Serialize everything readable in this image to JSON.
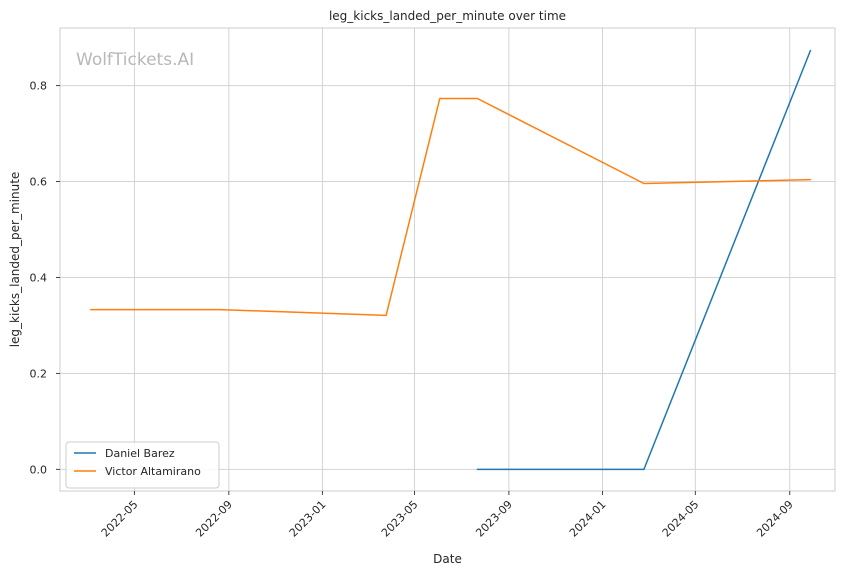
{
  "chart_data": {
    "type": "line",
    "title": "leg_kicks_landed_per_minute over time",
    "xlabel": "Date",
    "ylabel": "leg_kicks_landed_per_minute",
    "watermark": "WolfTickets.AI",
    "xlim": [
      "2022-01-24",
      "2024-10-30"
    ],
    "ylim": [
      -0.045,
      0.92
    ],
    "x_ticks": [
      "2022-05",
      "2022-09",
      "2023-01",
      "2023-05",
      "2023-09",
      "2024-01",
      "2024-05",
      "2024-09"
    ],
    "y_ticks": [
      0.0,
      0.2,
      0.4,
      0.6,
      0.8
    ],
    "grid": true,
    "legend_position": "lower-left",
    "series": [
      {
        "name": "Daniel Barez",
        "color": "#1f77b4",
        "x": [
          "2023-07-22",
          "2024-02-24",
          "2024-09-28"
        ],
        "y": [
          0.0,
          0.0,
          0.873
        ]
      },
      {
        "name": "Victor Altamirano",
        "color": "#ff7f0e",
        "x": [
          "2022-03-05",
          "2022-08-20",
          "2023-03-25",
          "2023-06-03",
          "2023-07-22",
          "2024-02-24",
          "2024-09-28"
        ],
        "y": [
          0.333,
          0.333,
          0.321,
          0.773,
          0.773,
          0.596,
          0.604
        ]
      }
    ]
  }
}
